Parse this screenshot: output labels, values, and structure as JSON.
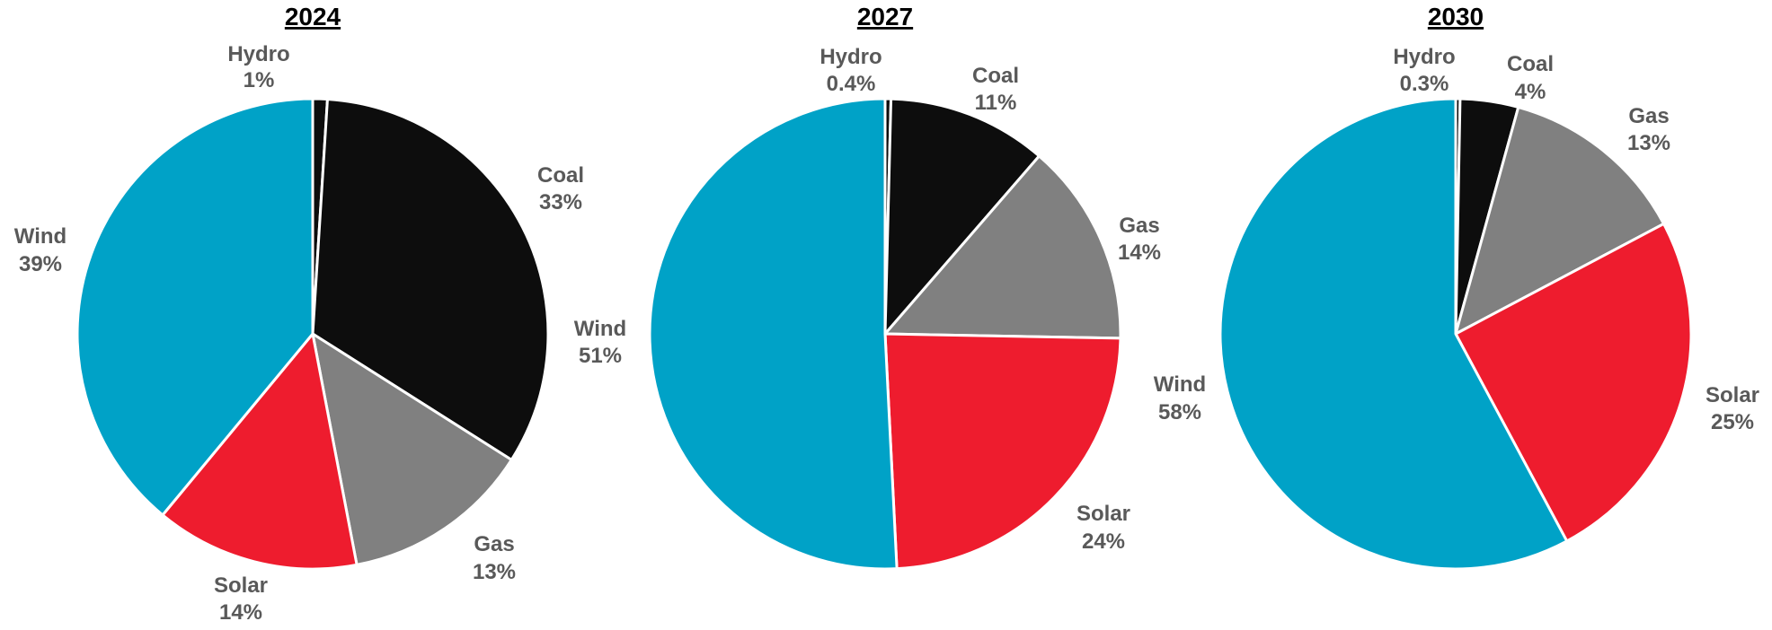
{
  "colors": {
    "Hydro": "#0d0d0d",
    "Coal": "#0d0d0d",
    "Gas": "#808080",
    "Solar": "#ee1c2e",
    "Wind": "#00a2c7",
    "slice_border": "#ffffff",
    "label_text": "#595959",
    "title_text": "#000000"
  },
  "chart_data": [
    {
      "type": "pie",
      "title": "2024",
      "slices": [
        {
          "name": "Hydro",
          "value": 1,
          "label": "1%"
        },
        {
          "name": "Coal",
          "value": 33,
          "label": "33%"
        },
        {
          "name": "Gas",
          "value": 13,
          "label": "13%"
        },
        {
          "name": "Solar",
          "value": 14,
          "label": "14%"
        },
        {
          "name": "Wind",
          "value": 39,
          "label": "39%"
        }
      ]
    },
    {
      "type": "pie",
      "title": "2027",
      "slices": [
        {
          "name": "Hydro",
          "value": 0.4,
          "label": "0.4%"
        },
        {
          "name": "Coal",
          "value": 11,
          "label": "11%"
        },
        {
          "name": "Gas",
          "value": 14,
          "label": "14%"
        },
        {
          "name": "Solar",
          "value": 24,
          "label": "24%"
        },
        {
          "name": "Wind",
          "value": 51,
          "label": "51%"
        }
      ]
    },
    {
      "type": "pie",
      "title": "2030",
      "slices": [
        {
          "name": "Hydro",
          "value": 0.3,
          "label": "0.3%"
        },
        {
          "name": "Coal",
          "value": 4,
          "label": "4%"
        },
        {
          "name": "Gas",
          "value": 13,
          "label": "13%"
        },
        {
          "name": "Solar",
          "value": 25,
          "label": "25%"
        },
        {
          "name": "Wind",
          "value": 58,
          "label": "58%"
        }
      ]
    }
  ]
}
